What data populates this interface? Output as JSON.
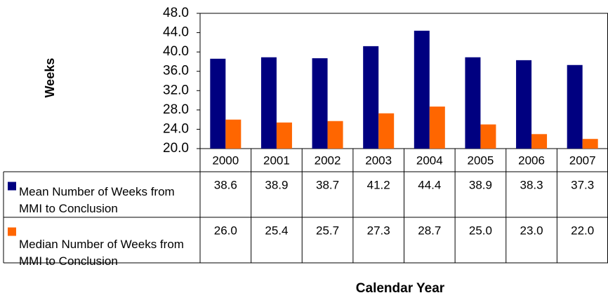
{
  "chart_data": {
    "type": "bar",
    "y_label": "Weeks",
    "x_label": "Calendar Year",
    "categories": [
      "2000",
      "2001",
      "2002",
      "2003",
      "2004",
      "2005",
      "2006",
      "2007"
    ],
    "series": [
      {
        "name": "Mean Number of Weeks from MMI to Conclusion",
        "color": "#000080",
        "values": [
          38.6,
          38.9,
          38.7,
          41.2,
          44.4,
          38.9,
          38.3,
          37.3
        ],
        "value_labels": [
          "38.6",
          "38.9",
          "38.7",
          "41.2",
          "44.4",
          "38.9",
          "38.3",
          "37.3"
        ]
      },
      {
        "name": "Median Number of Weeks from MMI to Conclusion",
        "color": "#ff6600",
        "values": [
          26.0,
          25.4,
          25.7,
          27.3,
          28.7,
          25.0,
          23.0,
          22.0
        ],
        "value_labels": [
          "26.0",
          "25.4",
          "25.7",
          "27.3",
          "28.7",
          "25.0",
          "23.0",
          "22.0"
        ]
      }
    ],
    "ylim": [
      20,
      48
    ],
    "yticks": [
      {
        "value": 20,
        "label": "20.0"
      },
      {
        "value": 24,
        "label": "24.0"
      },
      {
        "value": 28,
        "label": "28.0"
      },
      {
        "value": 32,
        "label": "32.0"
      },
      {
        "value": 36,
        "label": "36.0"
      },
      {
        "value": 40,
        "label": "40.0"
      },
      {
        "value": 44,
        "label": "44.0"
      },
      {
        "value": 48,
        "label": "48.0"
      }
    ],
    "grid": false
  }
}
